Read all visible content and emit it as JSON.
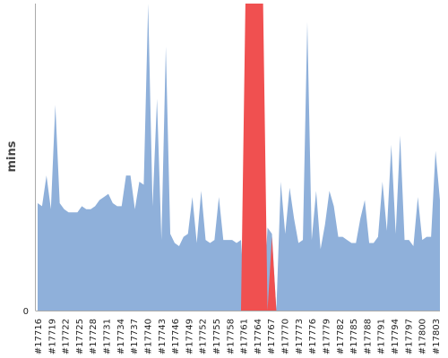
{
  "chart_data": {
    "type": "area",
    "ylabel": "mins",
    "y_tick_labels": [
      "0"
    ],
    "ylim": [
      0,
      100
    ],
    "x_tick_labels": [
      "#17716",
      "#17719",
      "#17722",
      "#17725",
      "#17728",
      "#17731",
      "#17734",
      "#17737",
      "#17740",
      "#17743",
      "#17746",
      "#17749",
      "#17752",
      "#17755",
      "#17758",
      "#17761",
      "#17764",
      "#17767",
      "#17770",
      "#17773",
      "#17776",
      "#17779",
      "#17782",
      "#17785",
      "#17788",
      "#17791",
      "#17794",
      "#17797",
      "#17800",
      "#17803"
    ],
    "x_start": 17716,
    "x_end": 17804,
    "series": [
      {
        "color": "#8fb0da",
        "values": [
          35,
          34,
          44,
          33,
          67,
          35,
          33,
          32,
          32,
          32,
          34,
          33,
          33,
          34,
          36,
          37,
          38,
          35,
          34,
          34,
          44,
          44,
          33,
          42,
          41,
          100,
          34,
          69,
          23,
          86,
          25,
          22,
          21,
          24,
          25,
          37,
          22,
          39,
          23,
          22,
          23,
          37,
          23,
          23,
          23,
          22,
          23,
          0,
          0,
          0,
          0,
          0,
          27,
          25,
          0,
          42,
          25,
          40,
          30,
          22,
          23,
          94,
          23,
          39,
          20,
          28,
          39,
          34,
          24,
          24,
          23,
          22,
          22,
          30,
          36,
          22,
          22,
          24,
          42,
          26,
          54,
          25,
          57,
          23,
          23,
          21,
          37,
          23,
          24,
          24,
          52,
          36
        ]
      },
      {
        "color": "#f05050",
        "values": [
          0,
          0,
          0,
          0,
          0,
          0,
          0,
          0,
          0,
          0,
          0,
          0,
          0,
          0,
          0,
          0,
          0,
          0,
          0,
          0,
          0,
          0,
          0,
          0,
          0,
          0,
          0,
          0,
          0,
          0,
          0,
          0,
          0,
          0,
          0,
          0,
          0,
          0,
          0,
          0,
          0,
          0,
          0,
          0,
          0,
          0,
          0,
          100,
          100,
          100,
          100,
          100,
          0,
          24,
          0,
          0,
          0,
          0,
          0,
          0,
          0,
          0,
          0,
          0,
          0,
          0,
          0,
          0,
          0,
          0,
          0,
          0,
          0,
          0,
          0,
          0,
          0,
          0,
          0,
          0,
          0,
          0,
          0,
          0,
          0,
          0,
          0,
          0,
          0,
          0,
          0,
          0
        ]
      }
    ],
    "colors": {
      "axis": "#aaaaaa",
      "blue": "#8fb0da",
      "red": "#f05050"
    }
  }
}
